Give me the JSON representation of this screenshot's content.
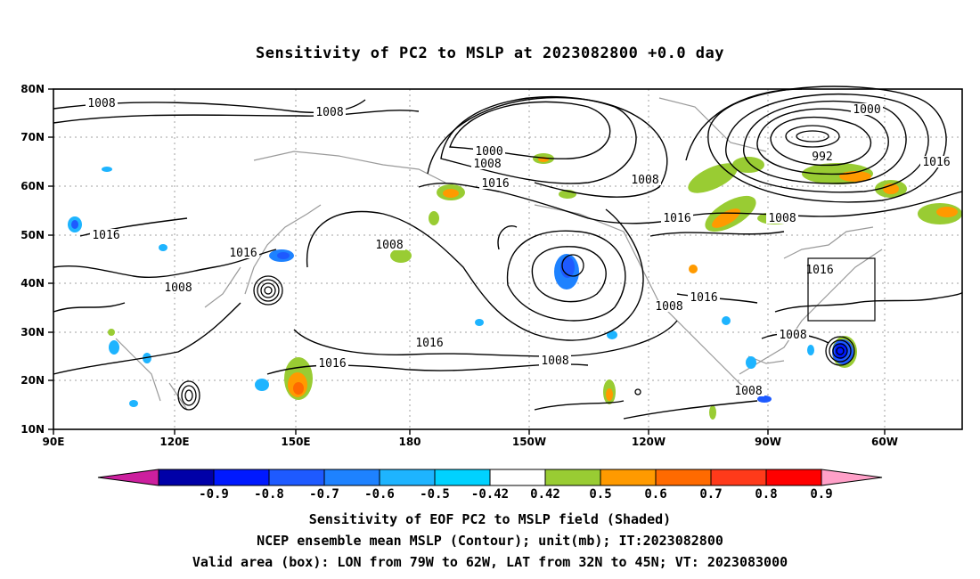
{
  "title": "Sensitivity of PC2 to MSLP at 2023082800 +0.0 day",
  "map": {
    "lat_ticks": [
      "80N",
      "70N",
      "60N",
      "50N",
      "40N",
      "30N",
      "20N",
      "10N"
    ],
    "lon_ticks": [
      "90E",
      "120E",
      "150E",
      "180",
      "150W",
      "120W",
      "90W",
      "60W"
    ],
    "contour_labels": [
      "1008",
      "1008",
      "1000",
      "1008",
      "1016",
      "1008",
      "1016",
      "1008",
      "1000",
      "992",
      "1016",
      "1016",
      "1008",
      "1016",
      "1016",
      "1008",
      "1016",
      "1008",
      "1016",
      "1016",
      "1008",
      "1008",
      "1008"
    ],
    "valid_box": {
      "lon_from": "79W",
      "lon_to": "62W",
      "lat_from": "32N",
      "lat_to": "45N"
    }
  },
  "colorbar": {
    "labels": [
      "-0.9",
      "-0.8",
      "-0.7",
      "-0.6",
      "-0.5",
      "-0.42",
      "0.42",
      "0.5",
      "0.6",
      "0.7",
      "0.8",
      "0.9"
    ],
    "colors": [
      "#cc1f9e",
      "#0000a8",
      "#0019ff",
      "#1e5aff",
      "#1e82ff",
      "#1eb4ff",
      "#00d2ff",
      "#ffffff",
      "#99cc33",
      "#ff9a00",
      "#ff6a00",
      "#ff3a1a",
      "#ff0000",
      "#ffa0c8"
    ]
  },
  "footer": {
    "line1": "Sensitivity of EOF PC2 to MSLP field (Shaded)",
    "line2": "NCEP ensemble mean MSLP (Contour); unit(mb); IT:2023082800",
    "line3": "Valid area (box): LON from 79W to 62W, LAT from 32N to 45N; VT: 2023083000"
  }
}
